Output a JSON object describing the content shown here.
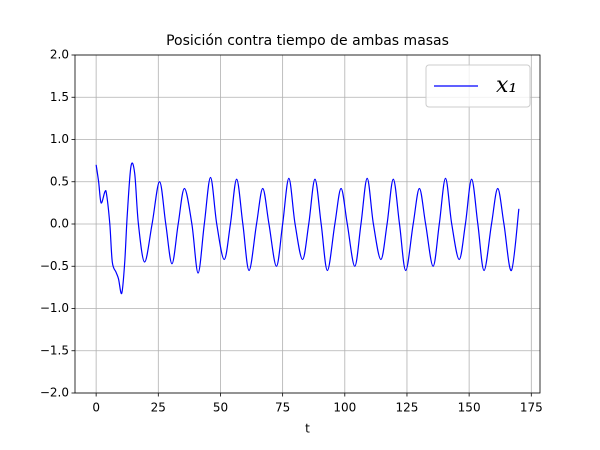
{
  "chart_data": {
    "type": "line",
    "title": "Posición contra tiempo de ambas masas",
    "x_label": "t",
    "x": [
      0,
      1,
      2,
      3.5,
      4.2,
      5.5,
      6.5,
      8,
      9,
      10.3,
      11.5,
      12.5,
      14,
      15.5,
      17,
      19.5,
      22.5,
      25.5,
      28,
      30.5,
      33,
      35.5,
      38.5,
      41,
      43.5,
      46,
      48.5,
      51.5,
      54,
      56.5,
      59,
      61.5,
      64.5,
      67,
      69.5,
      72.5,
      75,
      77.5,
      80,
      83,
      85.5,
      88,
      90.5,
      93,
      96,
      98.5,
      101,
      104,
      106.5,
      109,
      111.5,
      114.5,
      117,
      119.5,
      122,
      124.5,
      127.5,
      130,
      132.5,
      135.5,
      138,
      140.5,
      143,
      146,
      148.5,
      151,
      153.5,
      156,
      159,
      161.5,
      164,
      167,
      170
    ],
    "series": [
      {
        "name": "x₁",
        "color": "#0000ff",
        "values": [
          0.7,
          0.5,
          0.25,
          0.38,
          0.35,
          0.0,
          -0.45,
          -0.57,
          -0.65,
          -0.82,
          -0.45,
          0.1,
          0.68,
          0.6,
          0.0,
          -0.45,
          0.0,
          0.5,
          0.0,
          -0.47,
          0.0,
          0.42,
          0.0,
          -0.58,
          0.0,
          0.55,
          0.0,
          -0.42,
          0.0,
          0.53,
          0.0,
          -0.55,
          0.0,
          0.42,
          0.0,
          -0.5,
          0.0,
          0.54,
          0.0,
          -0.42,
          0.0,
          0.53,
          0.0,
          -0.55,
          0.0,
          0.42,
          0.0,
          -0.5,
          0.0,
          0.54,
          0.0,
          -0.42,
          0.0,
          0.53,
          0.0,
          -0.55,
          0.0,
          0.42,
          0.0,
          -0.5,
          0.0,
          0.54,
          0.0,
          -0.42,
          0.0,
          0.53,
          0.0,
          -0.55,
          0.0,
          0.42,
          0.0,
          -0.55,
          0.18
        ]
      }
    ],
    "xlim": [
      -8.5,
      178.5
    ],
    "xticks": [
      0,
      25,
      50,
      75,
      100,
      125,
      150,
      175
    ],
    "ylim": [
      -2,
      2
    ],
    "yticks": [
      {
        "value": -2,
        "label": "−2.0"
      },
      {
        "value": -1.5,
        "label": "−1.5"
      },
      {
        "value": -1,
        "label": "−1.0"
      },
      {
        "value": -0.5,
        "label": "−0.5"
      },
      {
        "value": 0,
        "label": "0.0"
      },
      {
        "value": 0.5,
        "label": "0.5"
      },
      {
        "value": 1,
        "label": "1.0"
      },
      {
        "value": 1.5,
        "label": "1.5"
      },
      {
        "value": 2,
        "label": "2.0"
      }
    ],
    "grid": true,
    "legend": "upper right"
  }
}
